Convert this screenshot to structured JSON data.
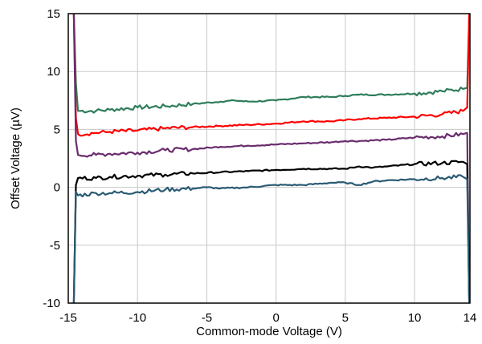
{
  "chart_data": {
    "type": "line",
    "xlabel": "Common-mode Voltage (V)",
    "ylabel": "Offset Voltage (µV)",
    "xlim": [
      -15,
      14
    ],
    "ylim": [
      -10,
      15
    ],
    "xticks": [
      -15,
      -10,
      -5,
      0,
      5,
      10,
      14
    ],
    "yticks": [
      -10,
      -5,
      0,
      5,
      10,
      15
    ],
    "xtick_labels": [
      "-15",
      "-10",
      "-5",
      "0",
      "5",
      "10",
      "14"
    ],
    "ytick_labels": [
      "-10",
      "-5",
      "0",
      "5",
      "10",
      "15"
    ],
    "grid": true,
    "legend": false,
    "series": [
      {
        "color": "#2e7d5b",
        "x": [
          -14.6,
          -14.45,
          -14.3,
          -13.0,
          -12.0,
          -10.0,
          -8.0,
          -6.0,
          -4.0,
          -3.0,
          -2.0,
          0.0,
          2.0,
          4.0,
          5.0,
          6.0,
          8.0,
          10.0,
          12.0,
          13.5,
          13.8,
          13.95
        ],
        "y": [
          15,
          9.0,
          6.6,
          6.6,
          6.7,
          6.9,
          7.0,
          7.2,
          7.4,
          7.5,
          7.4,
          7.5,
          7.8,
          7.8,
          7.9,
          8.0,
          8.0,
          8.1,
          8.3,
          8.5,
          8.6,
          15
        ]
      },
      {
        "color": "#ff0000",
        "x": [
          -14.6,
          -14.45,
          -14.3,
          -13.0,
          -12.0,
          -10.0,
          -8.0,
          -6.0,
          -4.0,
          -2.0,
          0.0,
          2.0,
          4.0,
          5.0,
          6.0,
          8.0,
          10.0,
          12.0,
          13.5,
          13.8,
          13.95
        ],
        "y": [
          15,
          6.0,
          4.6,
          4.7,
          4.8,
          4.9,
          5.1,
          5.2,
          5.3,
          5.4,
          5.5,
          5.7,
          5.7,
          5.8,
          5.9,
          6.0,
          6.1,
          6.3,
          6.6,
          6.9,
          15
        ]
      },
      {
        "color": "#6a2c6e",
        "x": [
          -14.6,
          -14.45,
          -14.3,
          -13.0,
          -12.0,
          -10.0,
          -8.0,
          -6.0,
          -4.0,
          -2.0,
          0.0,
          2.0,
          4.0,
          5.0,
          6.0,
          8.0,
          10.0,
          12.0,
          13.5,
          13.8,
          13.95
        ],
        "y": [
          15,
          4.0,
          2.8,
          2.8,
          2.9,
          3.0,
          3.2,
          3.3,
          3.5,
          3.6,
          3.7,
          3.8,
          3.9,
          4.0,
          4.0,
          4.1,
          4.3,
          4.4,
          4.6,
          4.7,
          -10
        ]
      },
      {
        "color": "#000000",
        "x": [
          -14.6,
          -14.45,
          -14.3,
          -13.0,
          -12.0,
          -10.0,
          -8.0,
          -6.0,
          -4.0,
          -2.0,
          0.0,
          2.0,
          4.0,
          5.0,
          6.0,
          7.0,
          8.0,
          10.0,
          12.0,
          13.5,
          13.8,
          13.95
        ],
        "y": [
          -10,
          0.2,
          0.8,
          0.8,
          0.9,
          1.0,
          1.1,
          1.2,
          1.3,
          1.4,
          1.5,
          1.6,
          1.6,
          1.6,
          1.8,
          1.7,
          1.8,
          2.0,
          2.1,
          2.2,
          2.0,
          -10
        ]
      },
      {
        "color": "#2a5b73",
        "x": [
          -14.6,
          -14.45,
          -14.3,
          -13.0,
          -12.0,
          -10.0,
          -8.0,
          -6.0,
          -5.0,
          -4.0,
          -2.0,
          0.0,
          2.0,
          4.0,
          5.0,
          6.0,
          7.0,
          8.0,
          10.0,
          12.0,
          13.5,
          13.8,
          13.95
        ],
        "y": [
          -10,
          -0.4,
          -0.7,
          -0.5,
          -0.5,
          -0.4,
          -0.2,
          -0.1,
          0.0,
          -0.1,
          0.0,
          0.2,
          0.2,
          0.4,
          0.4,
          0.2,
          0.5,
          0.6,
          0.7,
          0.8,
          0.9,
          0.7,
          -10
        ]
      }
    ]
  }
}
